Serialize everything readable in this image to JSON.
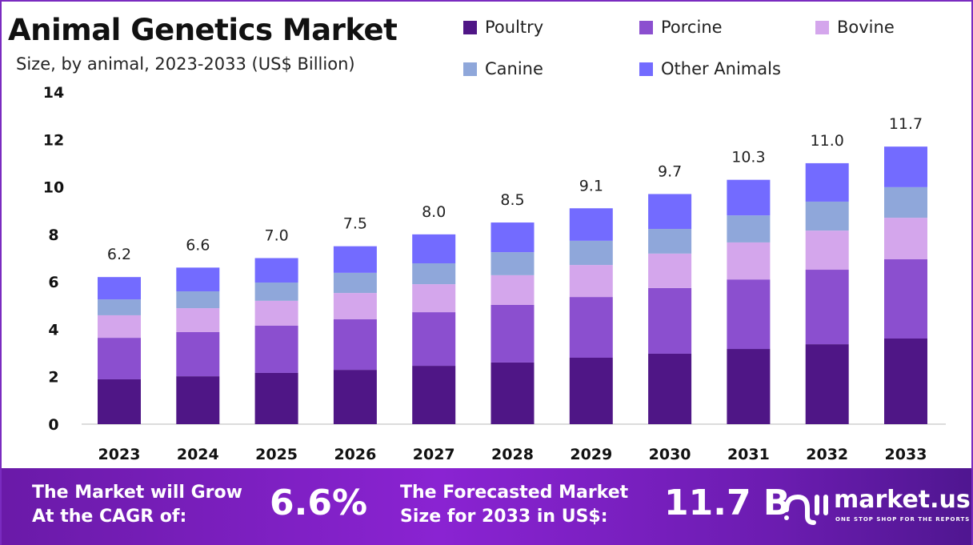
{
  "chart_data": {
    "type": "bar",
    "stacked": true,
    "title": "Animal Genetics Market",
    "subtitle": "Size, by animal, 2023-2033 (US$ Billion)",
    "categories": [
      "2023",
      "2024",
      "2025",
      "2026",
      "2027",
      "2028",
      "2029",
      "2030",
      "2031",
      "2032",
      "2033"
    ],
    "totals": [
      "6.2",
      "6.6",
      "7.0",
      "7.5",
      "8.0",
      "8.5",
      "9.1",
      "9.7",
      "10.3",
      "11.0",
      "11.7"
    ],
    "series": [
      {
        "name": "Poultry",
        "color": "#4f1686",
        "values": [
          1.89,
          2.02,
          2.16,
          2.29,
          2.46,
          2.6,
          2.8,
          2.97,
          3.17,
          3.37,
          3.61
        ]
      },
      {
        "name": "Porcine",
        "color": "#8b4fcf",
        "values": [
          1.75,
          1.86,
          1.99,
          2.13,
          2.26,
          2.43,
          2.56,
          2.77,
          2.93,
          3.14,
          3.34
        ]
      },
      {
        "name": "Bovine",
        "color": "#d4a6ec",
        "values": [
          0.95,
          1.01,
          1.05,
          1.11,
          1.18,
          1.25,
          1.35,
          1.45,
          1.56,
          1.65,
          1.75
        ]
      },
      {
        "name": "Canine",
        "color": "#8fa7da",
        "values": [
          0.67,
          0.71,
          0.77,
          0.85,
          0.88,
          0.97,
          1.02,
          1.04,
          1.14,
          1.22,
          1.29
        ]
      },
      {
        "name": "Other Animals",
        "color": "#736bff",
        "values": [
          0.94,
          1.0,
          1.03,
          1.12,
          1.22,
          1.25,
          1.37,
          1.47,
          1.5,
          1.62,
          1.71
        ]
      }
    ],
    "ylim": [
      0,
      14
    ],
    "yticks": [
      "0",
      "2",
      "4",
      "6",
      "8",
      "10",
      "12",
      "14"
    ],
    "grid": false,
    "legend": "top-right",
    "xlabel": "",
    "ylabel": ""
  },
  "footer": {
    "cagr_label_1": "The Market will Grow",
    "cagr_label_2": "At the CAGR of:",
    "cagr_value": "6.6%",
    "forecast_label_1": "The Forecasted Market",
    "forecast_label_2": "Size for 2033 in US$:",
    "forecast_value": "11.7 B",
    "brand": "market.us",
    "tagline": "ONE STOP SHOP FOR THE REPORTS"
  }
}
